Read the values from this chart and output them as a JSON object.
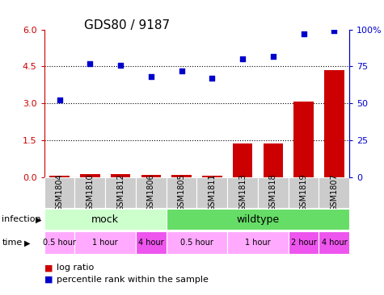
{
  "title": "GDS80 / 9187",
  "samples": [
    "GSM1804",
    "GSM1810",
    "GSM1812",
    "GSM1806",
    "GSM1805",
    "GSM1811",
    "GSM1813",
    "GSM1818",
    "GSM1819",
    "GSM1807"
  ],
  "log_ratio": [
    0.05,
    0.12,
    0.13,
    0.07,
    0.08,
    0.06,
    1.35,
    1.38,
    3.08,
    4.35
  ],
  "percentile_rank": [
    52,
    77,
    76,
    68,
    72,
    67,
    80,
    82,
    97,
    99
  ],
  "left_yaxis_ticks": [
    0,
    1.5,
    3.0,
    4.5,
    6.0
  ],
  "left_yaxis_color": "#cc0000",
  "right_yaxis_ticks": [
    0,
    25,
    50,
    75,
    100
  ],
  "right_yaxis_color": "#0000cc",
  "dotted_lines": [
    1.5,
    3.0,
    4.5
  ],
  "bar_color": "#cc0000",
  "scatter_color": "#0000cc",
  "infection_mock_color": "#ccffcc",
  "infection_wildtype_color": "#66dd66",
  "time_color_light": "#ffaaff",
  "time_color_dark": "#ee55ee",
  "sample_bg_color": "#cccccc",
  "background_color": "#ffffff",
  "time_groups": [
    {
      "label": "0.5 hour",
      "start": 0,
      "end": 1,
      "dark": false
    },
    {
      "label": "1 hour",
      "start": 1,
      "end": 3,
      "dark": false
    },
    {
      "label": "4 hour",
      "start": 3,
      "end": 4,
      "dark": true
    },
    {
      "label": "0.5 hour",
      "start": 4,
      "end": 6,
      "dark": false
    },
    {
      "label": "1 hour",
      "start": 6,
      "end": 8,
      "dark": false
    },
    {
      "label": "2 hour",
      "start": 8,
      "end": 9,
      "dark": true
    },
    {
      "label": "4 hour",
      "start": 9,
      "end": 10,
      "dark": true
    }
  ]
}
